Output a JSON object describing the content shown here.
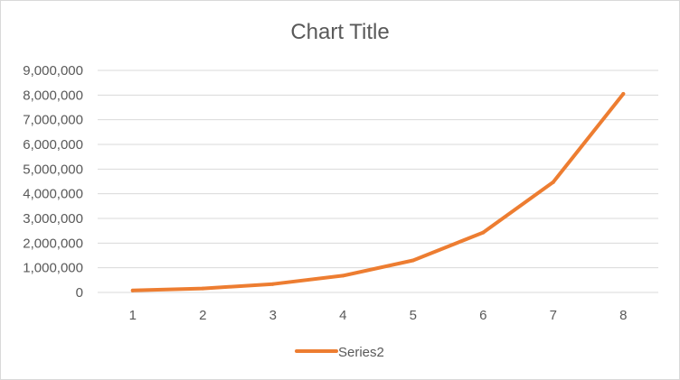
{
  "chart_data": {
    "type": "line",
    "title": "Chart Title",
    "xlabel": "",
    "ylabel": "",
    "x": [
      1,
      2,
      3,
      4,
      5,
      6,
      7,
      8
    ],
    "x_tick_labels": [
      "1",
      "2",
      "3",
      "4",
      "5",
      "6",
      "7",
      "8"
    ],
    "ylim": [
      0,
      9000000
    ],
    "y_ticks": [
      0,
      1000000,
      2000000,
      3000000,
      4000000,
      5000000,
      6000000,
      7000000,
      8000000,
      9000000
    ],
    "y_tick_labels": [
      "0",
      "1,000,000",
      "2,000,000",
      "3,000,000",
      "4,000,000",
      "5,000,000",
      "6,000,000",
      "7,000,000",
      "8,000,000",
      "9,000,000"
    ],
    "grid": "horizontal",
    "legend_position": "bottom",
    "series": [
      {
        "name": "Series2",
        "color": "#ED7D31",
        "values": [
          80000,
          160000,
          340000,
          680000,
          1300000,
          2430000,
          4470000,
          8050000
        ]
      }
    ]
  }
}
